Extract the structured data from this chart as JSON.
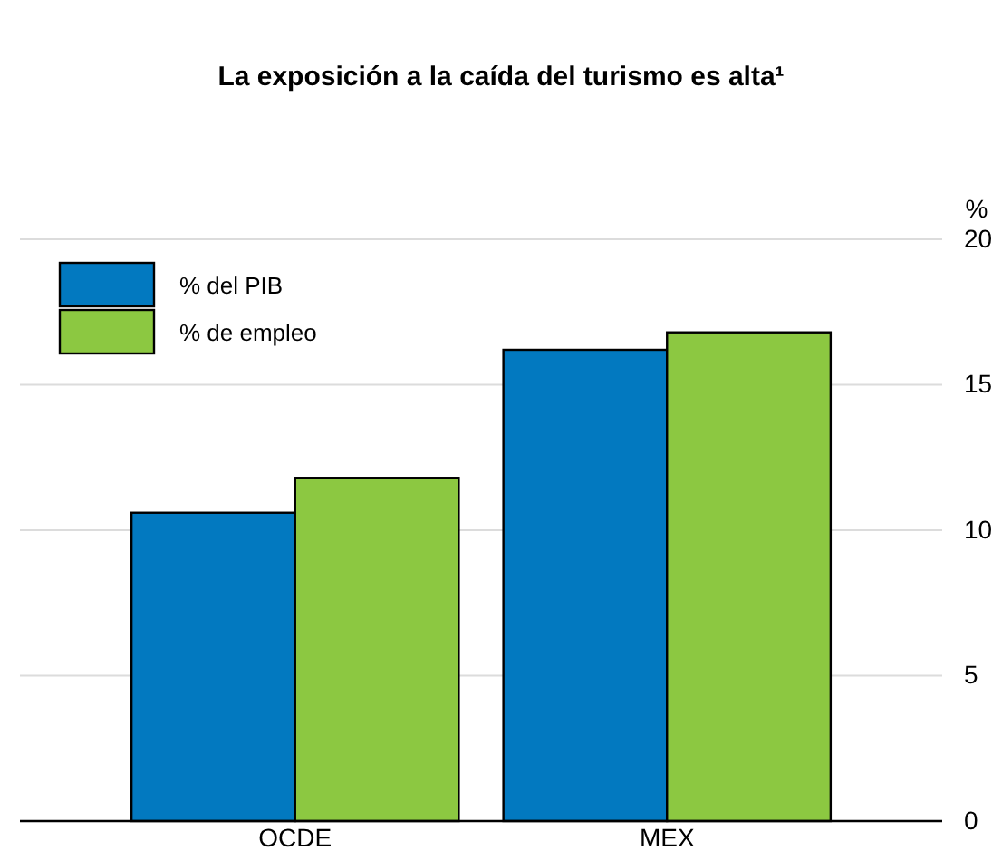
{
  "chart_data": {
    "type": "bar",
    "title": "La exposición a la caída del turismo es alta¹",
    "ylabel": "%",
    "categories": [
      "OCDE",
      "MEX"
    ],
    "series": [
      {
        "name": "% del PIB",
        "color": "#0279c0",
        "values": [
          10.6,
          16.2
        ]
      },
      {
        "name": "% de empleo",
        "color": "#8cc841",
        "values": [
          11.8,
          16.8
        ]
      }
    ],
    "ylim": [
      0,
      20
    ],
    "yticks": [
      0,
      5,
      10,
      15,
      20
    ],
    "grid": "y",
    "legend": "top left"
  }
}
